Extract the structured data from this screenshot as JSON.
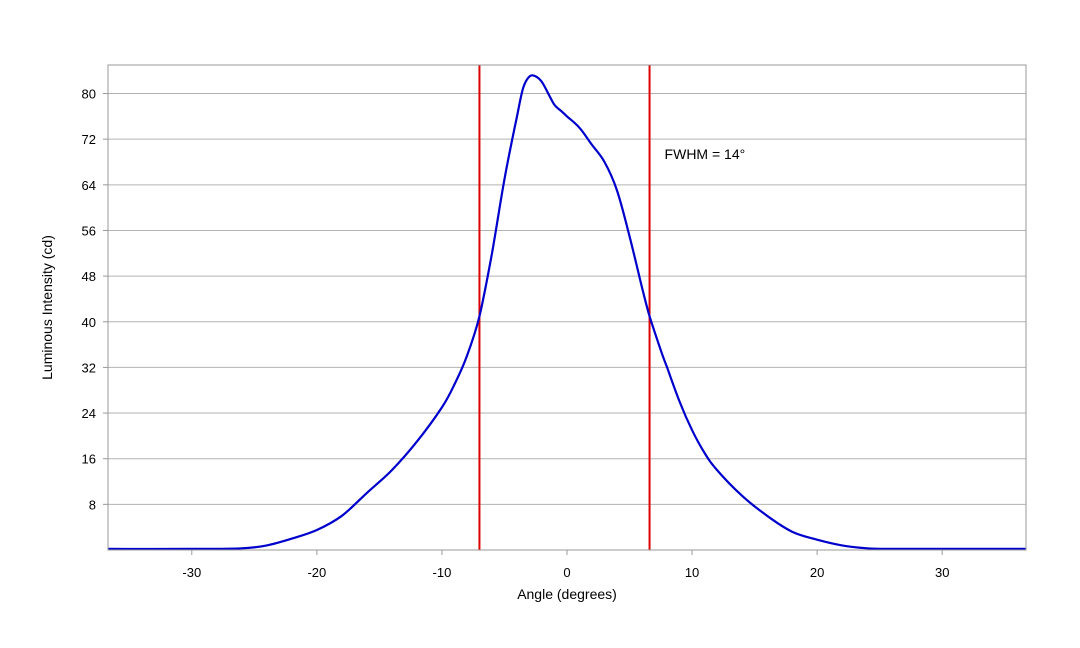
{
  "chart_data": {
    "type": "line",
    "title": "",
    "xlabel": "Angle (degrees)",
    "ylabel": "Luminous Intensity (cd)",
    "xlim": [
      -36.7,
      36.7
    ],
    "ylim": [
      0,
      85
    ],
    "xticks": [
      -30,
      -20,
      -10,
      0,
      10,
      20,
      30
    ],
    "yticks": [
      8,
      16,
      24,
      32,
      40,
      48,
      56,
      64,
      72,
      80
    ],
    "grid": "horizontal",
    "legend": "none",
    "series": [
      {
        "color": "#0000cc",
        "x": [
          -36.7,
          -30,
          -26,
          -24,
          -22,
          -20,
          -18,
          -16,
          -14,
          -12,
          -10,
          -9,
          -8,
          -7,
          -6,
          -5,
          -4,
          -3.5,
          -3,
          -2.5,
          -2,
          -1.5,
          -1,
          -0.5,
          0,
          1,
          2,
          3,
          4,
          5,
          6,
          6.6,
          7.5,
          8,
          9,
          10,
          11,
          12,
          14,
          16,
          18,
          20,
          22,
          24,
          26,
          30,
          36.7
        ],
        "values": [
          0.2,
          0.2,
          0.3,
          0.8,
          2,
          3.5,
          6,
          10,
          14,
          19,
          25,
          29,
          34,
          41,
          52,
          65,
          76,
          81,
          83,
          83,
          82,
          80,
          78,
          77,
          76,
          74,
          71,
          68,
          63,
          55,
          46,
          41,
          35,
          32,
          26,
          21,
          17,
          14,
          9.5,
          6,
          3.2,
          1.8,
          0.8,
          0.3,
          0.2,
          0.2,
          0.2
        ]
      }
    ],
    "annotations": [
      {
        "type": "vline",
        "x": -7,
        "color": "#dd0000"
      },
      {
        "type": "vline",
        "x": 6.6,
        "color": "#dd0000"
      },
      {
        "type": "text",
        "text": "FWHM = 14°",
        "x": 7.8,
        "y": 68.5
      }
    ]
  }
}
